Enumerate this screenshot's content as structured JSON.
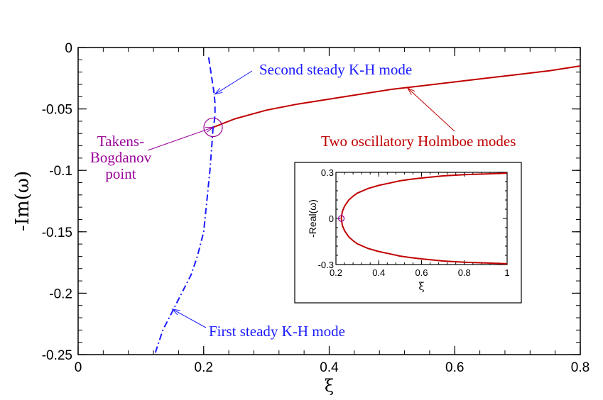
{
  "chart_data": [
    {
      "type": "line",
      "xlabel": "ξ",
      "ylabel": "-Im(ω)",
      "xlim": [
        0,
        0.8
      ],
      "ylim": [
        -0.25,
        0
      ],
      "x_ticks": [
        "0",
        "0.2",
        "0.4",
        "0.6",
        "0.8"
      ],
      "y_ticks": [
        "0",
        "-0.05",
        "-0.1",
        "-0.15",
        "-0.2",
        "-0.25"
      ],
      "grid": false,
      "colors": {
        "holmboe": "#c00000",
        "kh": "#1a1aff",
        "tb_label": "#990099",
        "tb_circle": "#990099"
      },
      "series": [
        {
          "name": "Two oscillatory Holmboe modes",
          "style": "solid",
          "x": [
            0.215,
            0.25,
            0.3,
            0.35,
            0.4,
            0.45,
            0.5,
            0.55,
            0.6,
            0.65,
            0.7,
            0.75,
            0.8
          ],
          "y": [
            -0.065,
            -0.058,
            -0.051,
            -0.046,
            -0.042,
            -0.038,
            -0.034,
            -0.031,
            -0.028,
            -0.025,
            -0.022,
            -0.019,
            -0.015
          ]
        },
        {
          "name": "Second steady K-H mode",
          "style": "dashed",
          "x": [
            0.208,
            0.21,
            0.213,
            0.216,
            0.218,
            0.218,
            0.217,
            0.215
          ],
          "y": [
            -0.008,
            -0.015,
            -0.025,
            -0.035,
            -0.045,
            -0.055,
            -0.06,
            -0.065
          ]
        },
        {
          "name": "First steady K-H mode",
          "style": "dashdot",
          "x": [
            0.215,
            0.213,
            0.21,
            0.205,
            0.2,
            0.19,
            0.18,
            0.165,
            0.15,
            0.135,
            0.122
          ],
          "y": [
            -0.065,
            -0.08,
            -0.1,
            -0.125,
            -0.15,
            -0.17,
            -0.185,
            -0.2,
            -0.215,
            -0.23,
            -0.25
          ]
        }
      ],
      "annotations": [
        {
          "text": "Second steady K-H mode",
          "color": "#1a1aff",
          "arrow_to": [
            0.218,
            -0.038
          ]
        },
        {
          "text": "Two oscillatory Holmboe modes",
          "color": "#c00000",
          "arrow_to": [
            0.525,
            -0.033
          ]
        },
        {
          "text": "First steady K-H mode",
          "color": "#1a1aff",
          "arrow_to": [
            0.15,
            -0.213
          ]
        },
        {
          "lines": [
            "Takens-",
            "Bogdanov",
            "point"
          ],
          "color": "#990099",
          "arrow_to": [
            0.215,
            -0.065
          ]
        }
      ],
      "marker": {
        "name": "Takens-Bogdanov point",
        "x": 0.215,
        "y": -0.065,
        "shape": "open-circle"
      }
    },
    {
      "type": "line",
      "xlabel": "ξ",
      "ylabel": "-Real(ω)",
      "xlim": [
        0.2,
        1
      ],
      "ylim": [
        -0.3,
        0.3
      ],
      "x_ticks": [
        "0.2",
        "0.4",
        "0.6",
        "0.8",
        "1"
      ],
      "y_ticks": [
        "0.3",
        "0",
        "-0.3"
      ],
      "grid": false,
      "series": [
        {
          "style": "solid",
          "x": [
            0.225,
            0.23,
            0.24,
            0.26,
            0.28,
            0.3,
            0.35,
            0.4,
            0.45,
            0.5,
            0.55,
            0.6,
            0.65,
            0.7,
            0.8,
            0.9,
            1.0
          ],
          "y": [
            0,
            0.045,
            0.08,
            0.12,
            0.145,
            0.165,
            0.195,
            0.215,
            0.23,
            0.245,
            0.255,
            0.263,
            0.27,
            0.277,
            0.285,
            0.29,
            0.295
          ]
        },
        {
          "style": "solid",
          "x": [
            0.225,
            0.23,
            0.24,
            0.26,
            0.28,
            0.3,
            0.35,
            0.4,
            0.45,
            0.5,
            0.55,
            0.6,
            0.65,
            0.7,
            0.8,
            0.9,
            1.0
          ],
          "y": [
            0,
            -0.045,
            -0.08,
            -0.12,
            -0.145,
            -0.165,
            -0.195,
            -0.215,
            -0.23,
            -0.245,
            -0.255,
            -0.263,
            -0.27,
            -0.277,
            -0.285,
            -0.29,
            -0.295
          ]
        }
      ],
      "marker": {
        "x": 0.225,
        "y": 0,
        "shape": "open-circle"
      }
    }
  ]
}
